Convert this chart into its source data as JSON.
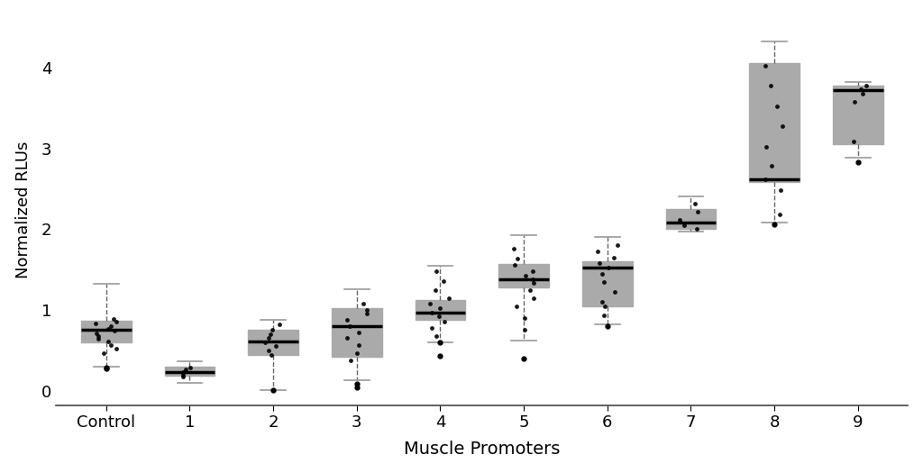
{
  "categories": [
    "Control",
    "1",
    "2",
    "3",
    "4",
    "5",
    "6",
    "7",
    "8",
    "9"
  ],
  "box_data": {
    "Control": {
      "whislo": 0.3,
      "q1": 0.595,
      "med": 0.755,
      "q3": 0.865,
      "whishi": 1.32,
      "fliers": [
        0.28,
        0.29
      ]
    },
    "1": {
      "whislo": 0.1,
      "q1": 0.185,
      "med": 0.235,
      "q3": 0.295,
      "whishi": 0.36,
      "fliers": []
    },
    "2": {
      "whislo": 0.01,
      "q1": 0.44,
      "med": 0.605,
      "q3": 0.755,
      "whishi": 0.88,
      "fliers": [
        0.005
      ]
    },
    "3": {
      "whislo": 0.13,
      "q1": 0.42,
      "med": 0.8,
      "q3": 1.02,
      "whishi": 1.26,
      "fliers": [
        0.04,
        0.08
      ]
    },
    "4": {
      "whislo": 0.6,
      "q1": 0.88,
      "med": 0.97,
      "q3": 1.12,
      "whishi": 1.55,
      "fliers": [
        0.43,
        0.6
      ]
    },
    "5": {
      "whislo": 0.62,
      "q1": 1.28,
      "med": 1.38,
      "q3": 1.57,
      "whishi": 1.92,
      "fliers": [
        0.4
      ]
    },
    "6": {
      "whislo": 0.82,
      "q1": 1.05,
      "med": 1.52,
      "q3": 1.6,
      "whishi": 1.9,
      "fliers": [
        0.8
      ]
    },
    "7": {
      "whislo": 1.97,
      "q1": 2.0,
      "med": 2.08,
      "q3": 2.25,
      "whishi": 2.4,
      "fliers": []
    },
    "8": {
      "whislo": 2.08,
      "q1": 2.58,
      "med": 2.62,
      "q3": 4.05,
      "whishi": 4.32,
      "fliers": [
        2.06
      ]
    },
    "9": {
      "whislo": 2.88,
      "q1": 3.05,
      "med": 3.72,
      "q3": 3.78,
      "whishi": 3.82,
      "fliers": [
        2.83
      ]
    }
  },
  "scatter_points": {
    "Control": [
      0.47,
      0.52,
      0.57,
      0.61,
      0.64,
      0.68,
      0.71,
      0.74,
      0.77,
      0.8,
      0.83,
      0.86,
      0.89
    ],
    "1": [
      0.17,
      0.2,
      0.23,
      0.26,
      0.29
    ],
    "2": [
      0.44,
      0.5,
      0.55,
      0.6,
      0.65,
      0.7,
      0.76,
      0.82
    ],
    "3": [
      0.38,
      0.47,
      0.57,
      0.65,
      0.72,
      0.8,
      0.88,
      0.95,
      1.0,
      1.08
    ],
    "4": [
      0.68,
      0.78,
      0.85,
      0.92,
      0.97,
      1.02,
      1.08,
      1.15,
      1.25,
      1.36,
      1.48
    ],
    "5": [
      0.75,
      0.9,
      1.05,
      1.15,
      1.25,
      1.33,
      1.38,
      1.42,
      1.48,
      1.56,
      1.63,
      1.76
    ],
    "6": [
      0.93,
      1.05,
      1.1,
      1.22,
      1.35,
      1.45,
      1.52,
      1.58,
      1.65,
      1.72,
      1.8
    ],
    "7": [
      2.0,
      2.05,
      2.12,
      2.22,
      2.32
    ],
    "8": [
      2.18,
      2.48,
      2.62,
      2.78,
      3.02,
      3.28,
      3.52,
      3.78,
      4.02
    ],
    "9": [
      3.08,
      3.58,
      3.68,
      3.73,
      3.78
    ]
  },
  "box_color_control": "#999999",
  "box_color_others": "#8B0000",
  "box_edge_color": "#aaaaaa",
  "median_color": "#000000",
  "whisker_color": "#666666",
  "cap_color": "#999999",
  "flier_color": "#000000",
  "scatter_color": "#000000",
  "xlabel": "Muscle Promoters",
  "ylabel": "Normalized RLUs",
  "ylim": [
    -0.18,
    4.65
  ],
  "yticks": [
    0,
    1,
    2,
    3,
    4
  ],
  "background_color": "#ffffff",
  "figsize": [
    10.24,
    5.25
  ],
  "dpi": 100
}
